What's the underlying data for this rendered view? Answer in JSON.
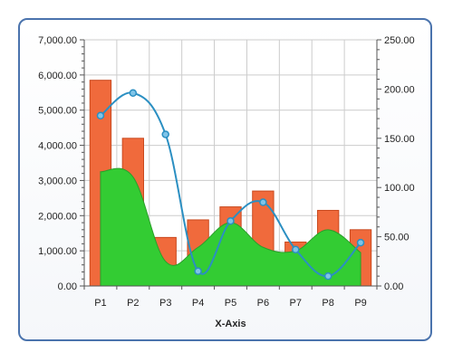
{
  "chart_data": {
    "type": "bar",
    "categories": [
      "P1",
      "P2",
      "P3",
      "P4",
      "P5",
      "P6",
      "P7",
      "P8",
      "P9"
    ],
    "xlabel": "X-Axis",
    "ylabel": "",
    "ylim": [
      0,
      7000
    ],
    "y2lim": [
      0,
      250
    ],
    "y_ticks": [
      "0.00",
      "1,000.00",
      "2,000.00",
      "3,000.00",
      "4,000.00",
      "5,000.00",
      "6,000.00",
      "7,000.00"
    ],
    "y2_ticks": [
      "0.00",
      "50.00",
      "100.00",
      "150.00",
      "200.00",
      "250.00"
    ],
    "grid": true,
    "legend": "none",
    "series": [
      {
        "kind": "bar",
        "axis": "left",
        "color": "#f06a3c",
        "values": [
          5850,
          4200,
          1380,
          1880,
          2250,
          2700,
          1250,
          2150,
          1600
        ]
      },
      {
        "kind": "area",
        "axis": "left",
        "color": "#33cc33",
        "values": [
          3250,
          3100,
          700,
          1100,
          1800,
          1100,
          1000,
          1600,
          950
        ]
      },
      {
        "kind": "line",
        "axis": "right",
        "color": "#2b8fc2",
        "values": [
          173,
          196,
          154,
          15,
          66,
          85,
          37,
          10,
          44
        ]
      }
    ]
  }
}
